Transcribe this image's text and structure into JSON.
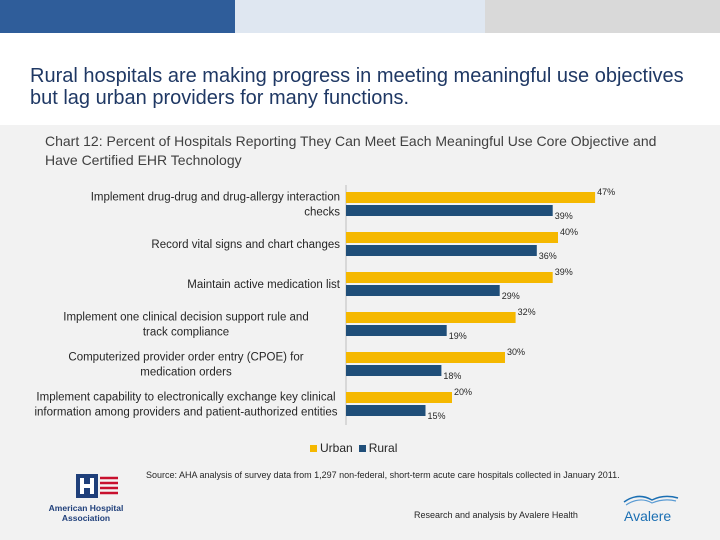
{
  "slide": {
    "title": "Rural hospitals are making progress in meeting meaningful use objectives but lag urban providers for many functions.",
    "chart_title": "Chart 12: Percent of Hospitals Reporting They Can Meet Each Meaningful Use Core Objective and Have Certified EHR Technology",
    "source": "Source: AHA analysis of survey data from 1,297 non-federal, short-term acute care hospitals collected in January 2011.",
    "credit": "Research and analysis by Avalere Health",
    "logo_left_text": "American Hospital Association",
    "logo_right_text": "Avalere"
  },
  "colors": {
    "urban": "#f5b800",
    "rural": "#1f4e79",
    "title": "#1f3864",
    "aha_red": "#c8102e",
    "aha_blue": "#1f3f7a",
    "avalere_blue": "#1b6fb3"
  },
  "chart_data": {
    "type": "bar",
    "orientation": "horizontal",
    "categories": [
      "Implement drug-drug and drug-allergy interaction checks",
      "Record vital signs and chart changes",
      "Maintain active medication list",
      "Implement one clinical decision support rule and track compliance",
      "Computerized provider order entry (CPOE) for medication orders",
      "Implement capability to electronically exchange key clinical information among providers and patient-authorized entities"
    ],
    "series": [
      {
        "name": "Urban",
        "values": [
          47,
          40,
          39,
          32,
          30,
          20
        ],
        "labels": [
          "47%",
          "40%",
          "39%",
          "32%",
          "30%",
          "20%"
        ]
      },
      {
        "name": "Rural",
        "values": [
          39,
          36,
          29,
          19,
          18,
          15
        ],
        "labels": [
          "39%",
          "36%",
          "29%",
          "19%",
          "18%",
          "15%"
        ]
      }
    ],
    "xlim": [
      0,
      50
    ],
    "legend_position": "bottom",
    "grid": false
  }
}
